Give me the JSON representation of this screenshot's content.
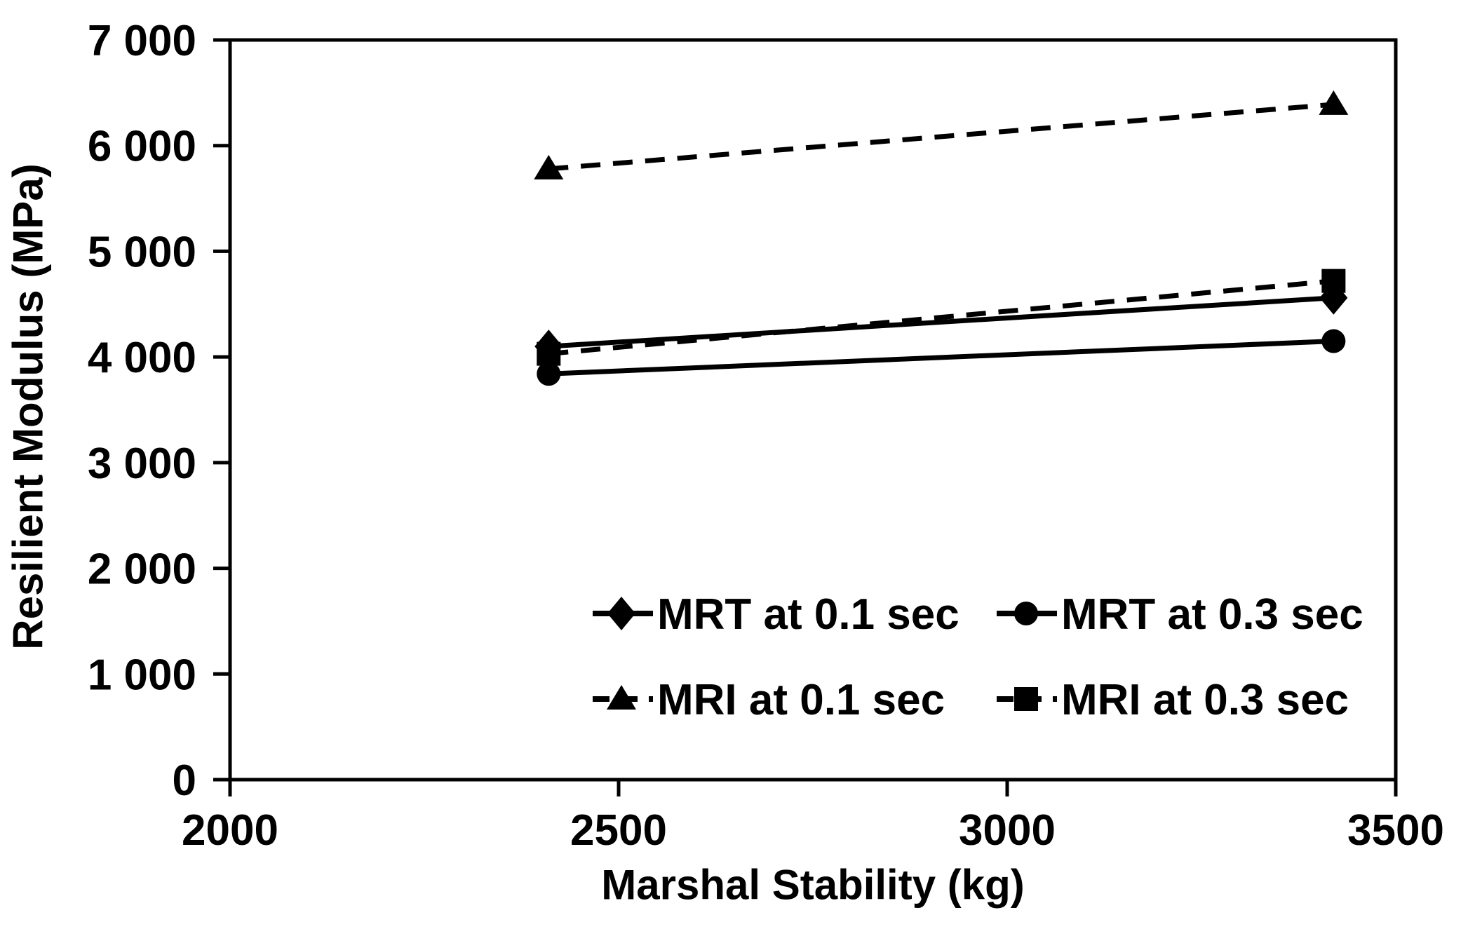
{
  "chart_data": {
    "type": "line",
    "title": "",
    "xlabel": "Marshal Stability (kg)",
    "ylabel": "Resilient Modulus (MPa)",
    "xlim": [
      2000,
      3500
    ],
    "ylim": [
      0,
      7000
    ],
    "x_ticks": [
      2000,
      2500,
      3000,
      3500
    ],
    "x_tick_labels": [
      "2000",
      "2500",
      "3000",
      "3500"
    ],
    "y_ticks": [
      0,
      1000,
      2000,
      3000,
      4000,
      5000,
      6000,
      7000
    ],
    "y_tick_labels": [
      "0",
      "1 000",
      "2 000",
      "3 000",
      "4 000",
      "5 000",
      "6 000",
      "7 000"
    ],
    "x": [
      2410,
      3420
    ],
    "series": [
      {
        "name": "MRT at 0.1 sec",
        "marker": "diamond",
        "line_style": "solid",
        "values": [
          4100,
          4560
        ]
      },
      {
        "name": "MRT at 0.3 sec",
        "marker": "circle",
        "line_style": "solid",
        "values": [
          3840,
          4150
        ]
      },
      {
        "name": "MRI at 0.1 sec",
        "marker": "triangle",
        "line_style": "dashed",
        "values": [
          5780,
          6390
        ]
      },
      {
        "name": "MRI at 0.3 sec",
        "marker": "square",
        "line_style": "dashed",
        "values": [
          4030,
          4720
        ]
      }
    ],
    "legend": {
      "position": "inside-bottom",
      "rows": [
        [
          "MRT at 0.1 sec",
          "MRT at 0.3 sec"
        ],
        [
          "MRI at 0.1 sec",
          "MRI at 0.3 sec"
        ]
      ]
    },
    "grid": false,
    "colors": {
      "foreground": "#000000",
      "background": "#ffffff"
    }
  }
}
